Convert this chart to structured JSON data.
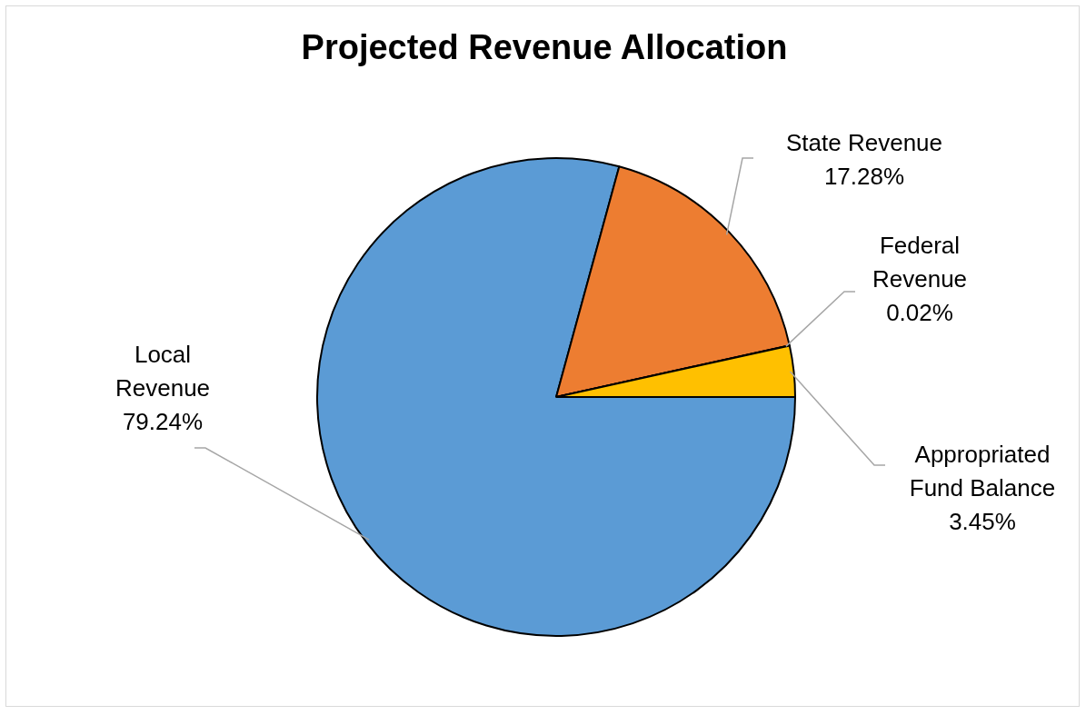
{
  "chart_data": {
    "type": "pie",
    "title": "Projected Revenue Allocation",
    "categories": [
      "Local Revenue",
      "State Revenue",
      "Federal Revenue",
      "Appropriated Fund Balance"
    ],
    "values": [
      79.24,
      17.28,
      0.02,
      3.45
    ],
    "value_labels": [
      "79.24%",
      "17.28%",
      "0.02%",
      "3.45%"
    ],
    "colors": [
      "#5b9bd5",
      "#ed7d31",
      "#a5a5a5",
      "#ffc000"
    ],
    "legend": false
  }
}
